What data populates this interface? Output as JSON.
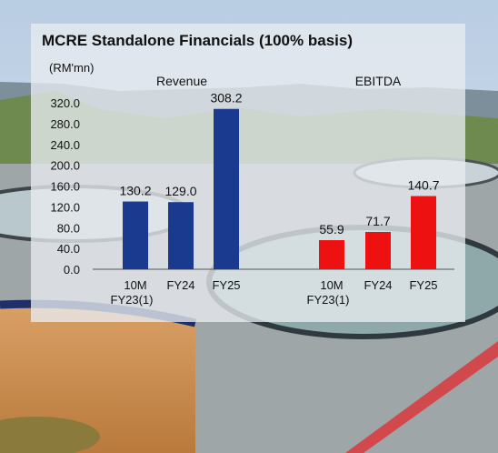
{
  "chart_data": {
    "title": "MCRE Standalone Financials (100% basis)",
    "unit_label": "(RM'mn)",
    "y_ticks": [
      "320.0",
      "280.0",
      "240.0",
      "200.0",
      "160.0",
      "120.0",
      "80.0",
      "40.0",
      "0.0"
    ],
    "ylim": [
      0,
      320
    ],
    "grid": false,
    "panels": [
      {
        "type": "bar",
        "title": "Revenue",
        "color": "#1a3a8f",
        "categories": [
          [
            "10M",
            "FY23(1)"
          ],
          [
            "FY24"
          ],
          [
            "FY25"
          ]
        ],
        "values": [
          130.2,
          129.0,
          308.2
        ],
        "value_labels": [
          "130.2",
          "129.0",
          "308.2"
        ]
      },
      {
        "type": "bar",
        "title": "EBITDA",
        "color": "#ee1111",
        "categories": [
          [
            "10M",
            "FY23(1)"
          ],
          [
            "FY24"
          ],
          [
            "FY25"
          ]
        ],
        "values": [
          55.9,
          71.7,
          140.7
        ],
        "value_labels": [
          "55.9",
          "71.7",
          "140.7"
        ]
      }
    ]
  }
}
